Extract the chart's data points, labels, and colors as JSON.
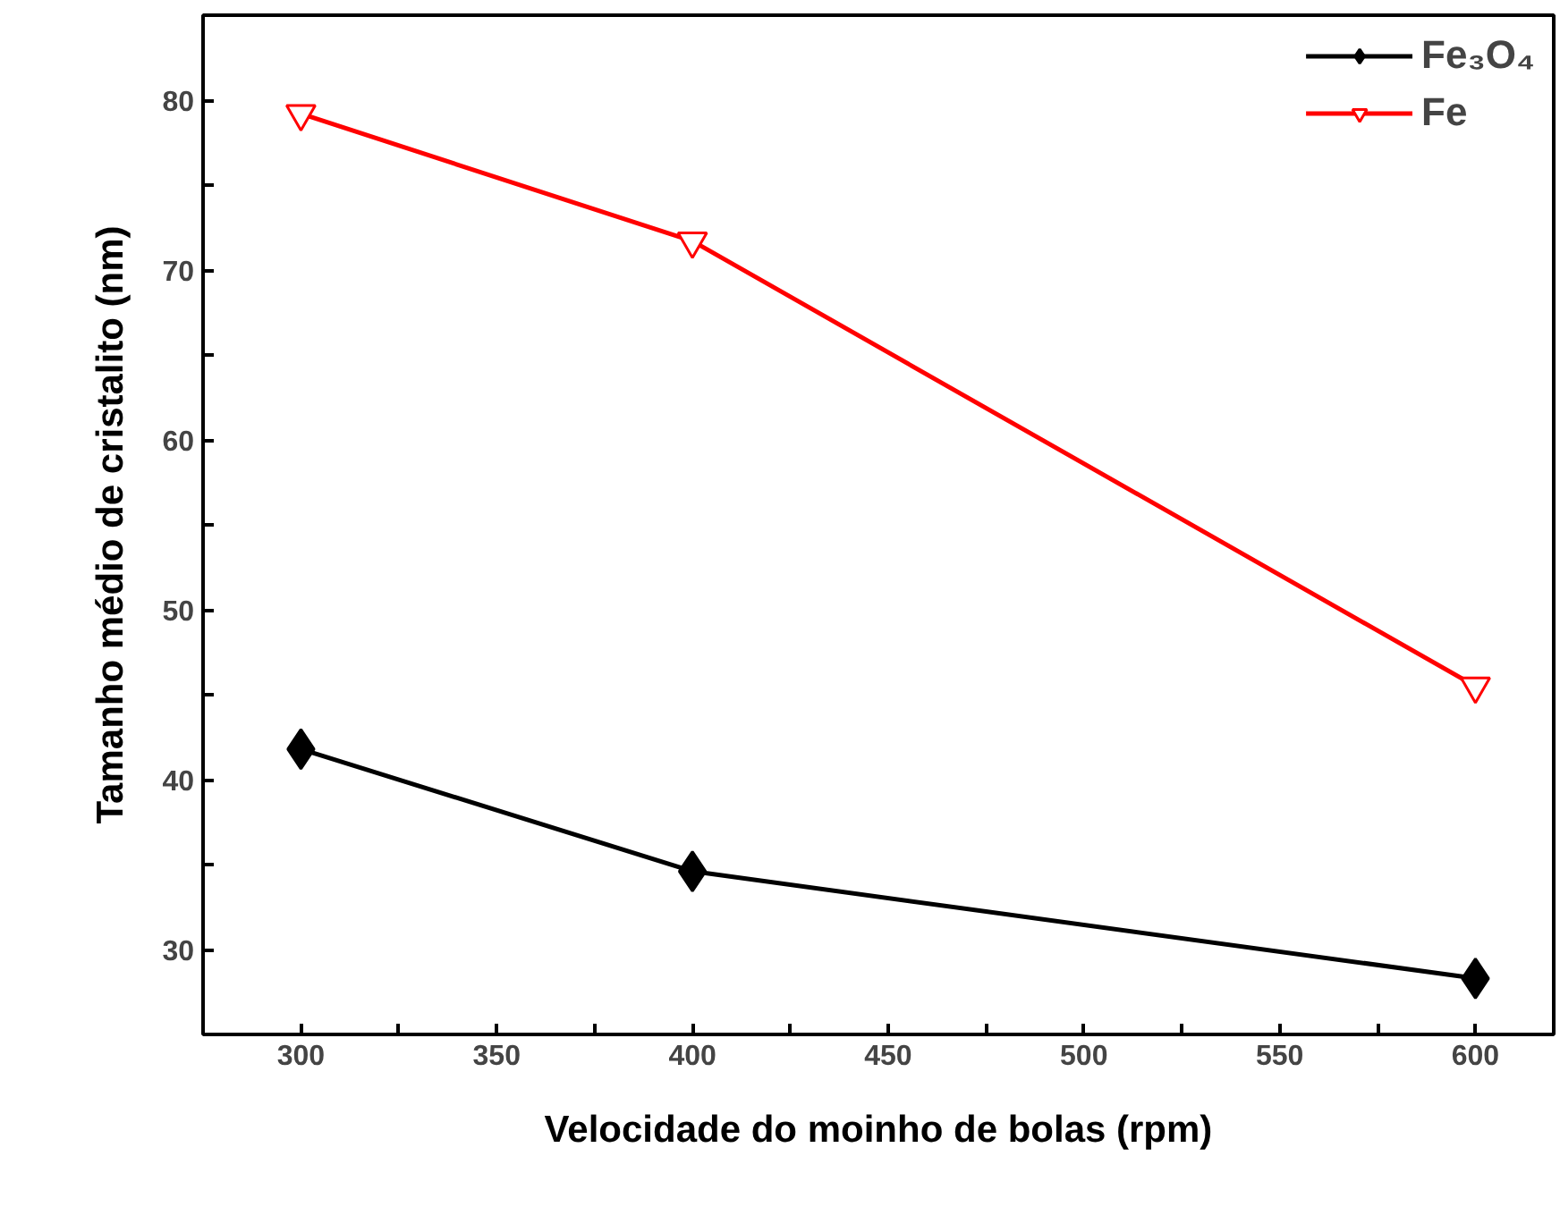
{
  "chart_data": {
    "type": "line",
    "xlabel": "Velocidade do moinho de bolas (rpm)",
    "ylabel": "Tamanho médio de cristalito (nm)",
    "x": [
      300,
      400,
      600
    ],
    "series": [
      {
        "name": "Fe₃O₄",
        "color": "#000000",
        "values": [
          41.8,
          34.6,
          28.3
        ],
        "marker": "diamond"
      },
      {
        "name": "Fe",
        "color": "#ff0000",
        "values": [
          79.2,
          71.7,
          45.5
        ],
        "marker": "triangle"
      }
    ],
    "xlim": [
      275,
      620
    ],
    "ylim": [
      25,
      85
    ],
    "xticks": [
      300,
      {
        "value": 325,
        "label": null
      },
      350,
      {
        "value": 375,
        "label": null
      },
      400,
      {
        "value": 425,
        "label": null
      },
      450,
      {
        "value": 475,
        "label": null
      },
      500,
      {
        "value": 525,
        "label": null
      },
      550,
      {
        "value": 575,
        "label": null
      },
      600
    ],
    "yticks": [
      {
        "value": 25,
        "label": null
      },
      30,
      {
        "value": 35,
        "label": null
      },
      40,
      {
        "value": 45,
        "label": null
      },
      50,
      {
        "value": 55,
        "label": null
      },
      60,
      {
        "value": 65,
        "label": null
      },
      70,
      {
        "value": 75,
        "label": null
      },
      80,
      {
        "value": 85,
        "label": null
      }
    ],
    "grid": false,
    "legend": "top right",
    "line_style": "solid"
  }
}
